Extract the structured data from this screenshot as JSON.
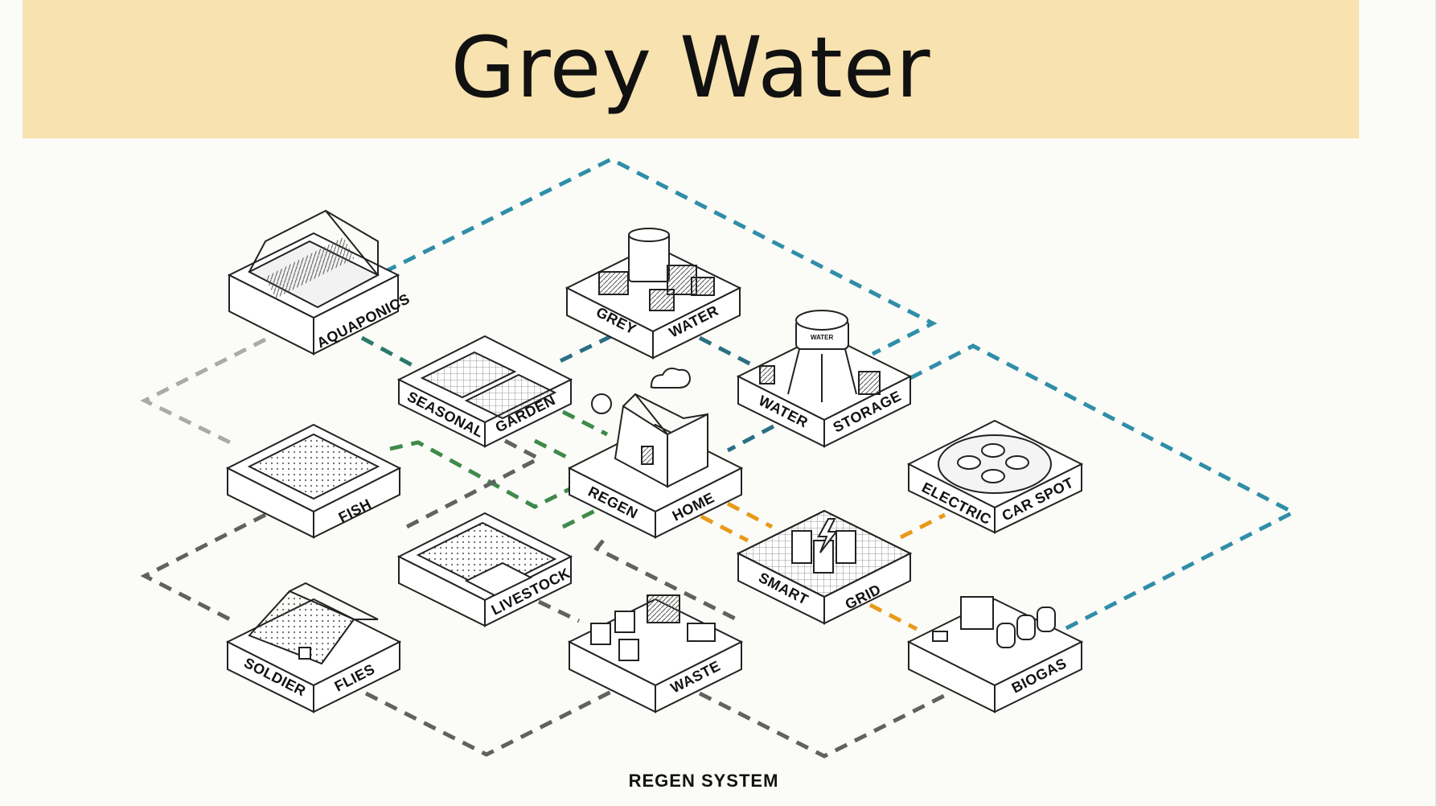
{
  "slide": {
    "title": "Grey Water",
    "caption": "REGEN SYSTEM"
  },
  "modules": {
    "aquaponics": {
      "label": "AQUAPONICS"
    },
    "grey_water": {
      "left": "GREY",
      "right": "WATER"
    },
    "seasonal_garden": {
      "left": "SEASONAL",
      "right": "GARDEN"
    },
    "water_storage": {
      "left": "WATER",
      "right": "STORAGE",
      "tank_label": "WATER"
    },
    "fish": {
      "label": "FISH"
    },
    "regen_home": {
      "left": "REGEN",
      "right": "HOME"
    },
    "electric_car_spot": {
      "left": "ELECTRIC",
      "right": "CAR SPOT"
    },
    "livestock": {
      "label": "LIVESTOCK"
    },
    "smart_grid": {
      "left": "SMART",
      "right": "GRID"
    },
    "soldier_flies": {
      "left": "SOLDIER",
      "right": "FLIES"
    },
    "waste": {
      "label": "WASTE"
    },
    "biogas": {
      "label": "BIOGAS"
    }
  },
  "colors": {
    "teal_flow": "#2f8ea8",
    "dark_teal_flow": "#2a6f84",
    "green_flow": "#3f8a4a",
    "grey_flow": "#5f6360",
    "light_grey_flow": "#a9aba7",
    "orange_flow": "#e89a1a",
    "title_band": "#f7e2b0"
  }
}
